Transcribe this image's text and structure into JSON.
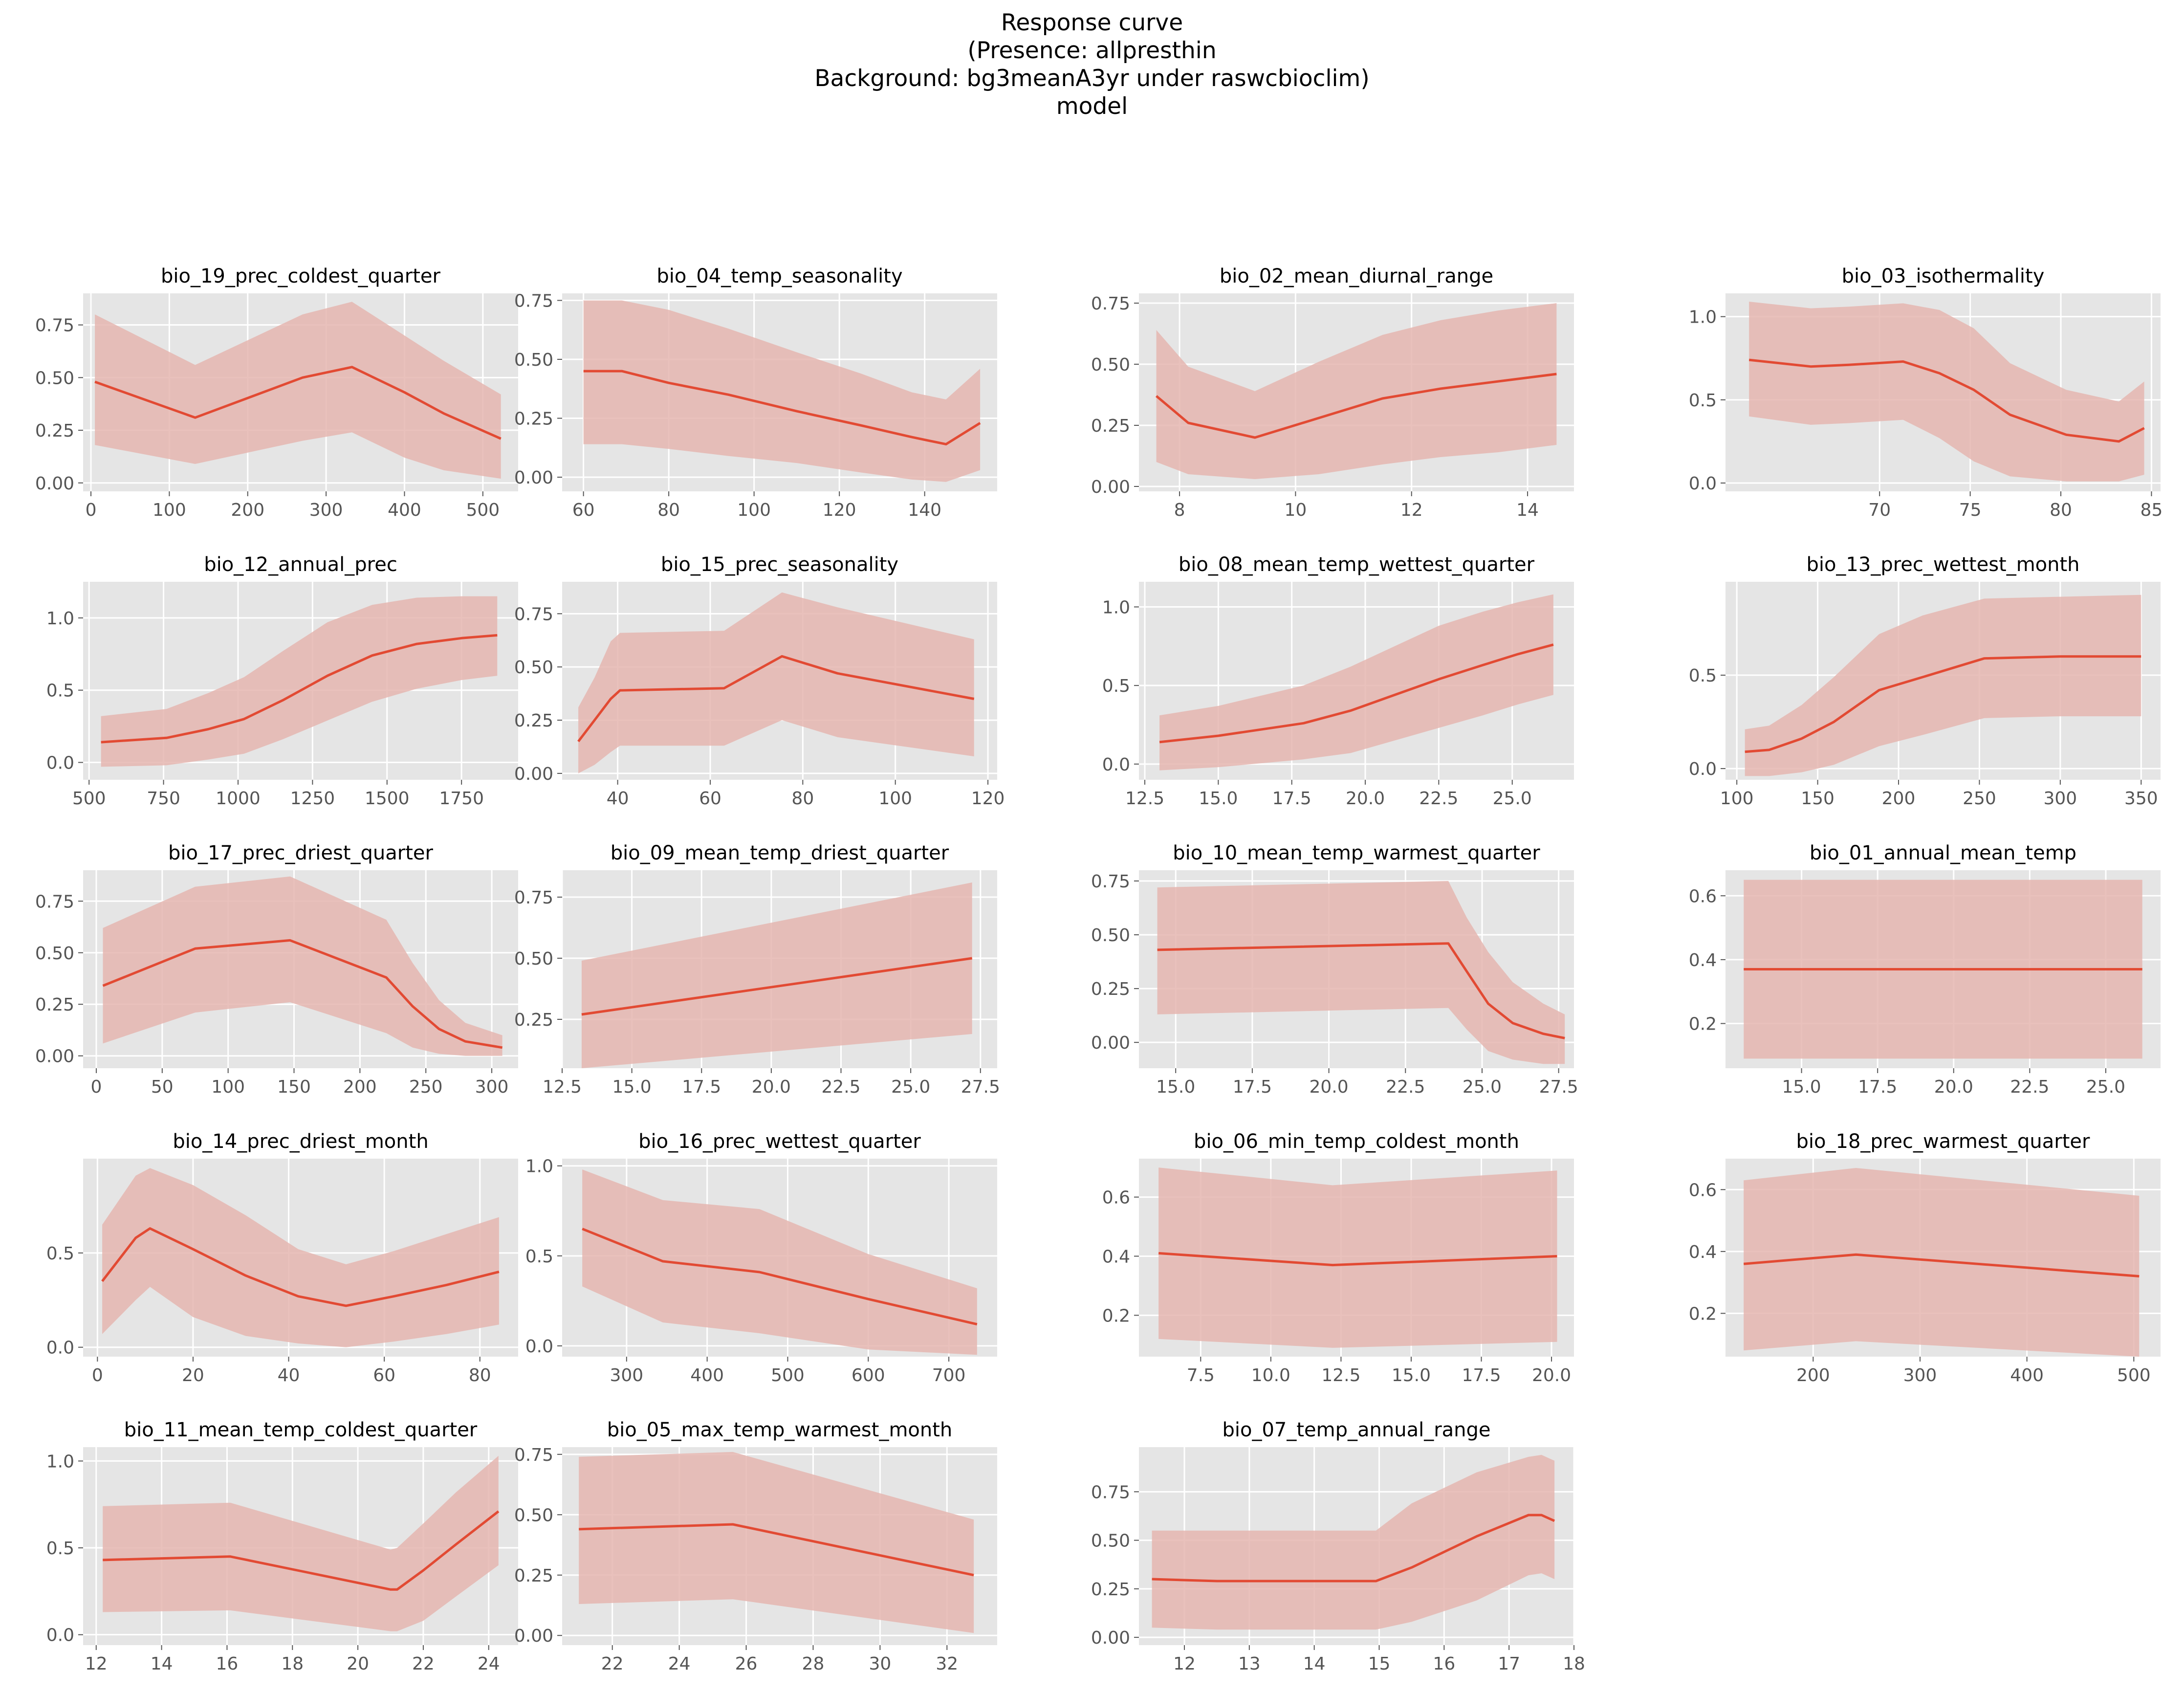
{
  "figure": {
    "title_lines": [
      "Response curve",
      "(Presence: allpresthin",
      "Background: bg3meanA3yr under raswcbioclim)",
      "model"
    ],
    "colors": {
      "line": "#E24A33",
      "band": "#E5B6B0",
      "panel_bg": "#E5E5E5",
      "grid": "#FFFFFF",
      "tick_text": "#555555"
    }
  },
  "chart_data": [
    {
      "type": "line",
      "title": "bio_19_prec_coldest_quarter",
      "xlim": [
        -10,
        545
      ],
      "ylim": [
        -0.04,
        0.9
      ],
      "xticks": [
        0,
        100,
        200,
        300,
        400,
        500
      ],
      "yticks": [
        0.0,
        0.25,
        0.5,
        0.75
      ],
      "xtick_labels": [
        "0",
        "100",
        "200",
        "300",
        "400",
        "500"
      ],
      "ytick_labels": [
        "0.00",
        "0.25",
        "0.50",
        "0.75"
      ],
      "x": [
        5,
        133,
        270,
        333,
        400,
        450,
        523
      ],
      "y": [
        0.48,
        0.31,
        0.5,
        0.55,
        0.43,
        0.33,
        0.21
      ],
      "lower": [
        0.18,
        0.09,
        0.2,
        0.24,
        0.12,
        0.06,
        0.02
      ],
      "upper": [
        0.8,
        0.56,
        0.8,
        0.86,
        0.7,
        0.58,
        0.42
      ]
    },
    {
      "type": "line",
      "title": "bio_04_temp_seasonality",
      "xlim": [
        55,
        157
      ],
      "ylim": [
        -0.06,
        0.78
      ],
      "xticks": [
        60,
        80,
        100,
        120,
        140
      ],
      "yticks": [
        0.0,
        0.25,
        0.5,
        0.75
      ],
      "xtick_labels": [
        "60",
        "80",
        "100",
        "120",
        "140"
      ],
      "ytick_labels": [
        "0.00",
        "0.25",
        "0.50",
        "0.75"
      ],
      "x": [
        60,
        69,
        80,
        94,
        110,
        125,
        137,
        145,
        153
      ],
      "y": [
        0.45,
        0.45,
        0.4,
        0.35,
        0.28,
        0.22,
        0.17,
        0.14,
        0.23
      ],
      "lower": [
        0.14,
        0.14,
        0.12,
        0.09,
        0.06,
        0.02,
        -0.01,
        -0.02,
        0.03
      ],
      "upper": [
        0.75,
        0.75,
        0.71,
        0.63,
        0.53,
        0.44,
        0.36,
        0.33,
        0.46
      ]
    },
    {
      "type": "line",
      "title": "bio_02_mean_diurnal_range",
      "xlim": [
        7.3,
        14.8
      ],
      "ylim": [
        -0.02,
        0.79
      ],
      "xticks": [
        8,
        10,
        12,
        14
      ],
      "yticks": [
        0.0,
        0.25,
        0.5,
        0.75
      ],
      "xtick_labels": [
        "8",
        "10",
        "12",
        "14"
      ],
      "ytick_labels": [
        "0.00",
        "0.25",
        "0.50",
        "0.75"
      ],
      "x": [
        7.6,
        8.15,
        9.3,
        10.4,
        11.5,
        12.5,
        13.5,
        14.5
      ],
      "y": [
        0.37,
        0.26,
        0.2,
        0.28,
        0.36,
        0.4,
        0.43,
        0.46
      ],
      "lower": [
        0.1,
        0.05,
        0.03,
        0.05,
        0.09,
        0.12,
        0.14,
        0.17
      ],
      "upper": [
        0.64,
        0.49,
        0.39,
        0.51,
        0.62,
        0.68,
        0.72,
        0.75
      ]
    },
    {
      "type": "line",
      "title": "bio_03_isothermality",
      "xlim": [
        61.5,
        85.5
      ],
      "ylim": [
        -0.05,
        1.14
      ],
      "xticks": [
        70,
        75,
        80,
        85
      ],
      "yticks": [
        0.0,
        0.5,
        1.0
      ],
      "xtick_labels": [
        "70",
        "75",
        "80",
        "85"
      ],
      "ytick_labels": [
        "0.0",
        "0.5",
        "1.0"
      ],
      "x": [
        62.8,
        66.2,
        68.3,
        71.3,
        73.3,
        75.2,
        77.2,
        80.3,
        83.2,
        84.6
      ],
      "y": [
        0.74,
        0.7,
        0.71,
        0.73,
        0.66,
        0.56,
        0.41,
        0.29,
        0.25,
        0.33
      ],
      "lower": [
        0.4,
        0.35,
        0.36,
        0.38,
        0.27,
        0.13,
        0.04,
        0.01,
        0.01,
        0.05
      ],
      "upper": [
        1.09,
        1.05,
        1.06,
        1.08,
        1.04,
        0.93,
        0.72,
        0.56,
        0.49,
        0.61
      ]
    },
    {
      "type": "line",
      "title": "bio_12_annual_prec",
      "xlim": [
        480,
        1940
      ],
      "ylim": [
        -0.12,
        1.25
      ],
      "xticks": [
        500,
        750,
        1000,
        1250,
        1500,
        1750
      ],
      "yticks": [
        0.0,
        0.5,
        1.0
      ],
      "xtick_labels": [
        "500",
        "750",
        "1000",
        "1250",
        "1500",
        "1750"
      ],
      "ytick_labels": [
        "0.0",
        "0.5",
        "1.0"
      ],
      "x": [
        540,
        760,
        900,
        1020,
        1150,
        1300,
        1450,
        1600,
        1750,
        1870
      ],
      "y": [
        0.14,
        0.17,
        0.23,
        0.3,
        0.43,
        0.6,
        0.74,
        0.82,
        0.86,
        0.88
      ],
      "lower": [
        -0.03,
        -0.02,
        0.02,
        0.06,
        0.16,
        0.29,
        0.42,
        0.51,
        0.57,
        0.6
      ],
      "upper": [
        0.32,
        0.37,
        0.48,
        0.59,
        0.77,
        0.97,
        1.09,
        1.14,
        1.15,
        1.15
      ]
    },
    {
      "type": "line",
      "title": "bio_15_prec_seasonality",
      "xlim": [
        28,
        122
      ],
      "ylim": [
        -0.03,
        0.9
      ],
      "xticks": [
        40,
        60,
        80,
        100,
        120
      ],
      "yticks": [
        0.0,
        0.25,
        0.5,
        0.75
      ],
      "xtick_labels": [
        "40",
        "60",
        "80",
        "100",
        "120"
      ],
      "ytick_labels": [
        "0.00",
        "0.25",
        "0.50",
        "0.75"
      ],
      "x": [
        31.5,
        35,
        38.5,
        40.5,
        63,
        75.5,
        87.5,
        117
      ],
      "y": [
        0.15,
        0.25,
        0.35,
        0.39,
        0.4,
        0.55,
        0.47,
        0.35
      ],
      "lower": [
        0.0,
        0.04,
        0.1,
        0.13,
        0.13,
        0.25,
        0.17,
        0.08
      ],
      "upper": [
        0.31,
        0.45,
        0.62,
        0.66,
        0.67,
        0.85,
        0.78,
        0.63
      ]
    },
    {
      "type": "line",
      "title": "bio_08_mean_temp_wettest_quarter",
      "xlim": [
        12.3,
        27.1
      ],
      "ylim": [
        -0.1,
        1.16
      ],
      "xticks": [
        12.5,
        15.0,
        17.5,
        20.0,
        22.5,
        25.0
      ],
      "yticks": [
        0.0,
        0.5,
        1.0
      ],
      "xtick_labels": [
        "12.5",
        "15.0",
        "17.5",
        "20.0",
        "22.5",
        "25.0"
      ],
      "ytick_labels": [
        "0.0",
        "0.5",
        "1.0"
      ],
      "x": [
        13,
        15,
        17.9,
        19.5,
        21,
        22.5,
        24,
        25.2,
        26.4
      ],
      "y": [
        0.14,
        0.18,
        0.26,
        0.34,
        0.44,
        0.54,
        0.63,
        0.7,
        0.76
      ],
      "lower": [
        -0.04,
        -0.02,
        0.03,
        0.07,
        0.15,
        0.23,
        0.31,
        0.38,
        0.44
      ],
      "upper": [
        0.31,
        0.37,
        0.5,
        0.62,
        0.75,
        0.88,
        0.97,
        1.03,
        1.08
      ]
    },
    {
      "type": "line",
      "title": "bio_13_prec_wettest_month",
      "xlim": [
        93,
        362
      ],
      "ylim": [
        -0.06,
        1.0
      ],
      "xticks": [
        100,
        150,
        200,
        250,
        300,
        350
      ],
      "yticks": [
        0.0,
        0.5
      ],
      "xtick_labels": [
        "100",
        "150",
        "200",
        "250",
        "300",
        "350"
      ],
      "ytick_labels": [
        "0.0",
        "0.5"
      ],
      "x": [
        105,
        120,
        140,
        160,
        188,
        215,
        253,
        300,
        350
      ],
      "y": [
        0.09,
        0.1,
        0.16,
        0.25,
        0.42,
        0.49,
        0.59,
        0.6,
        0.6
      ],
      "lower": [
        -0.04,
        -0.04,
        -0.02,
        0.02,
        0.12,
        0.18,
        0.27,
        0.28,
        0.28
      ],
      "upper": [
        0.21,
        0.23,
        0.34,
        0.49,
        0.72,
        0.82,
        0.91,
        0.92,
        0.93
      ]
    },
    {
      "type": "line",
      "title": "bio_17_prec_driest_quarter",
      "xlim": [
        -10,
        320
      ],
      "ylim": [
        -0.06,
        0.9
      ],
      "xticks": [
        0,
        50,
        100,
        150,
        200,
        250,
        300
      ],
      "yticks": [
        0.0,
        0.25,
        0.5,
        0.75
      ],
      "xtick_labels": [
        "0",
        "50",
        "100",
        "150",
        "200",
        "250",
        "300"
      ],
      "ytick_labels": [
        "0.00",
        "0.25",
        "0.50",
        "0.75"
      ],
      "x": [
        5,
        75,
        147,
        220,
        240,
        260,
        280,
        308
      ],
      "y": [
        0.34,
        0.52,
        0.56,
        0.38,
        0.24,
        0.13,
        0.07,
        0.04
      ],
      "lower": [
        0.06,
        0.21,
        0.26,
        0.11,
        0.04,
        0.01,
        0.0,
        0.0
      ],
      "upper": [
        0.62,
        0.82,
        0.87,
        0.66,
        0.45,
        0.27,
        0.16,
        0.1
      ]
    },
    {
      "type": "line",
      "title": "bio_09_mean_temp_driest_quarter",
      "xlim": [
        12.5,
        28.1
      ],
      "ylim": [
        0.05,
        0.86
      ],
      "xticks": [
        12.5,
        15.0,
        17.5,
        20.0,
        22.5,
        25.0,
        27.5
      ],
      "yticks": [
        0.25,
        0.5,
        0.75
      ],
      "xtick_labels": [
        "12.5",
        "15.0",
        "17.5",
        "20.0",
        "22.5",
        "25.0",
        "27.5"
      ],
      "ytick_labels": [
        "0.25",
        "0.50",
        "0.75"
      ],
      "x": [
        13.2,
        27.2
      ],
      "y": [
        0.27,
        0.5
      ],
      "lower": [
        0.05,
        0.19
      ],
      "upper": [
        0.49,
        0.81
      ]
    },
    {
      "type": "line",
      "title": "bio_10_mean_temp_warmest_quarter",
      "xlim": [
        13.8,
        28
      ],
      "ylim": [
        -0.12,
        0.8
      ],
      "xticks": [
        15.0,
        17.5,
        20.0,
        22.5,
        25.0,
        27.5
      ],
      "yticks": [
        0.0,
        0.25,
        0.5,
        0.75
      ],
      "xtick_labels": [
        "15.0",
        "17.5",
        "20.0",
        "22.5",
        "25.0",
        "27.5"
      ],
      "ytick_labels": [
        "0.00",
        "0.25",
        "0.50",
        "0.75"
      ],
      "x": [
        14.4,
        23.9,
        24.5,
        25.2,
        26,
        27,
        27.7
      ],
      "y": [
        0.43,
        0.46,
        0.33,
        0.18,
        0.09,
        0.04,
        0.02
      ],
      "lower": [
        0.13,
        0.16,
        0.06,
        -0.04,
        -0.08,
        -0.1,
        -0.1
      ],
      "upper": [
        0.72,
        0.75,
        0.58,
        0.42,
        0.28,
        0.18,
        0.13
      ]
    },
    {
      "type": "line",
      "title": "bio_01_annual_mean_temp",
      "xlim": [
        12.5,
        26.8
      ],
      "ylim": [
        0.06,
        0.68
      ],
      "xticks": [
        15.0,
        17.5,
        20.0,
        22.5,
        25.0
      ],
      "yticks": [
        0.2,
        0.4,
        0.6
      ],
      "xtick_labels": [
        "15.0",
        "17.5",
        "20.0",
        "22.5",
        "25.0"
      ],
      "ytick_labels": [
        "0.2",
        "0.4",
        "0.6"
      ],
      "x": [
        13.1,
        26.2
      ],
      "y": [
        0.37,
        0.37
      ],
      "lower": [
        0.09,
        0.09
      ],
      "upper": [
        0.65,
        0.65
      ]
    },
    {
      "type": "line",
      "title": "bio_14_prec_driest_month",
      "xlim": [
        -3,
        88
      ],
      "ylim": [
        -0.05,
        1.0
      ],
      "xticks": [
        0,
        20,
        40,
        60,
        80
      ],
      "yticks": [
        0.0,
        0.5
      ],
      "xtick_labels": [
        "0",
        "20",
        "40",
        "60",
        "80"
      ],
      "ytick_labels": [
        "0.0",
        "0.5"
      ],
      "x": [
        1,
        8,
        11,
        20,
        31,
        42,
        52,
        62,
        73,
        84
      ],
      "y": [
        0.35,
        0.58,
        0.63,
        0.52,
        0.38,
        0.27,
        0.22,
        0.27,
        0.33,
        0.4
      ],
      "lower": [
        0.07,
        0.25,
        0.32,
        0.16,
        0.06,
        0.02,
        0.0,
        0.03,
        0.07,
        0.12
      ],
      "upper": [
        0.65,
        0.91,
        0.95,
        0.86,
        0.7,
        0.52,
        0.44,
        0.51,
        0.6,
        0.69
      ]
    },
    {
      "type": "line",
      "title": "bio_16_prec_wettest_quarter",
      "xlim": [
        220,
        760
      ],
      "ylim": [
        -0.06,
        1.04
      ],
      "xticks": [
        300,
        400,
        500,
        600,
        700
      ],
      "yticks": [
        0.0,
        0.5,
        1.0
      ],
      "xtick_labels": [
        "300",
        "400",
        "500",
        "600",
        "700"
      ],
      "ytick_labels": [
        "0.0",
        "0.5",
        "1.0"
      ],
      "x": [
        245,
        345,
        465,
        600,
        735
      ],
      "y": [
        0.65,
        0.47,
        0.41,
        0.26,
        0.12
      ],
      "lower": [
        0.33,
        0.13,
        0.07,
        -0.02,
        -0.05
      ],
      "upper": [
        0.98,
        0.81,
        0.76,
        0.51,
        0.32
      ]
    },
    {
      "type": "line",
      "title": "bio_06_min_temp_coldest_month",
      "xlim": [
        5.3,
        20.8
      ],
      "ylim": [
        0.06,
        0.73
      ],
      "xticks": [
        7.5,
        10.0,
        12.5,
        15.0,
        17.5,
        20.0
      ],
      "yticks": [
        0.2,
        0.4,
        0.6
      ],
      "xtick_labels": [
        "7.5",
        "10.0",
        "12.5",
        "15.0",
        "17.5",
        "20.0"
      ],
      "ytick_labels": [
        "0.2",
        "0.4",
        "0.6"
      ],
      "x": [
        6.0,
        12.2,
        20.2
      ],
      "y": [
        0.41,
        0.37,
        0.4
      ],
      "lower": [
        0.12,
        0.09,
        0.11
      ],
      "upper": [
        0.7,
        0.64,
        0.69
      ]
    },
    {
      "type": "line",
      "title": "bio_18_prec_warmest_quarter",
      "xlim": [
        118,
        525
      ],
      "ylim": [
        0.06,
        0.7
      ],
      "xticks": [
        200,
        300,
        400,
        500
      ],
      "yticks": [
        0.2,
        0.4,
        0.6
      ],
      "xtick_labels": [
        "200",
        "300",
        "400",
        "500"
      ],
      "ytick_labels": [
        "0.2",
        "0.4",
        "0.6"
      ],
      "x": [
        135,
        240,
        505
      ],
      "y": [
        0.36,
        0.39,
        0.32
      ],
      "lower": [
        0.08,
        0.11,
        0.06
      ],
      "upper": [
        0.63,
        0.67,
        0.58
      ]
    },
    {
      "type": "line",
      "title": "bio_11_mean_temp_coldest_quarter",
      "xlim": [
        11.6,
        24.9
      ],
      "ylim": [
        -0.06,
        1.08
      ],
      "xticks": [
        12,
        14,
        16,
        18,
        20,
        22,
        24
      ],
      "yticks": [
        0.0,
        0.5,
        1.0
      ],
      "xtick_labels": [
        "12",
        "14",
        "16",
        "18",
        "20",
        "22",
        "24"
      ],
      "ytick_labels": [
        "0.0",
        "0.5",
        "1.0"
      ],
      "x": [
        12.2,
        16.1,
        21.0,
        21.2,
        22.0,
        23.0,
        24.3
      ],
      "y": [
        0.43,
        0.45,
        0.26,
        0.26,
        0.37,
        0.52,
        0.71
      ],
      "lower": [
        0.13,
        0.14,
        0.02,
        0.02,
        0.08,
        0.22,
        0.4
      ],
      "upper": [
        0.74,
        0.76,
        0.49,
        0.5,
        0.64,
        0.82,
        1.03
      ]
    },
    {
      "type": "line",
      "title": "bio_05_max_temp_warmest_month",
      "xlim": [
        20.5,
        33.5
      ],
      "ylim": [
        -0.04,
        0.78
      ],
      "xticks": [
        22,
        24,
        26,
        28,
        30,
        32
      ],
      "yticks": [
        0.0,
        0.25,
        0.5,
        0.75
      ],
      "xtick_labels": [
        "22",
        "24",
        "26",
        "28",
        "30",
        "32"
      ],
      "ytick_labels": [
        "0.00",
        "0.25",
        "0.50",
        "0.75"
      ],
      "x": [
        21.0,
        25.6,
        32.8
      ],
      "y": [
        0.44,
        0.46,
        0.25
      ],
      "lower": [
        0.13,
        0.15,
        0.01
      ],
      "upper": [
        0.74,
        0.76,
        0.48
      ]
    },
    {
      "type": "line",
      "title": "bio_07_temp_annual_range",
      "xlim": [
        11.3,
        18.0
      ],
      "ylim": [
        -0.04,
        0.98
      ],
      "xticks": [
        12,
        13,
        14,
        15,
        16,
        17,
        18
      ],
      "yticks": [
        0.0,
        0.25,
        0.5,
        0.75
      ],
      "xtick_labels": [
        "12",
        "13",
        "14",
        "15",
        "16",
        "17",
        "18"
      ],
      "ytick_labels": [
        "0.00",
        "0.25",
        "0.50",
        "0.75"
      ],
      "x": [
        11.5,
        12.5,
        14.95,
        15.5,
        16.5,
        17.3,
        17.5,
        17.7
      ],
      "y": [
        0.3,
        0.29,
        0.29,
        0.36,
        0.52,
        0.63,
        0.63,
        0.6
      ],
      "lower": [
        0.05,
        0.04,
        0.04,
        0.08,
        0.19,
        0.32,
        0.33,
        0.3
      ],
      "upper": [
        0.55,
        0.55,
        0.55,
        0.69,
        0.85,
        0.93,
        0.94,
        0.91
      ]
    }
  ]
}
